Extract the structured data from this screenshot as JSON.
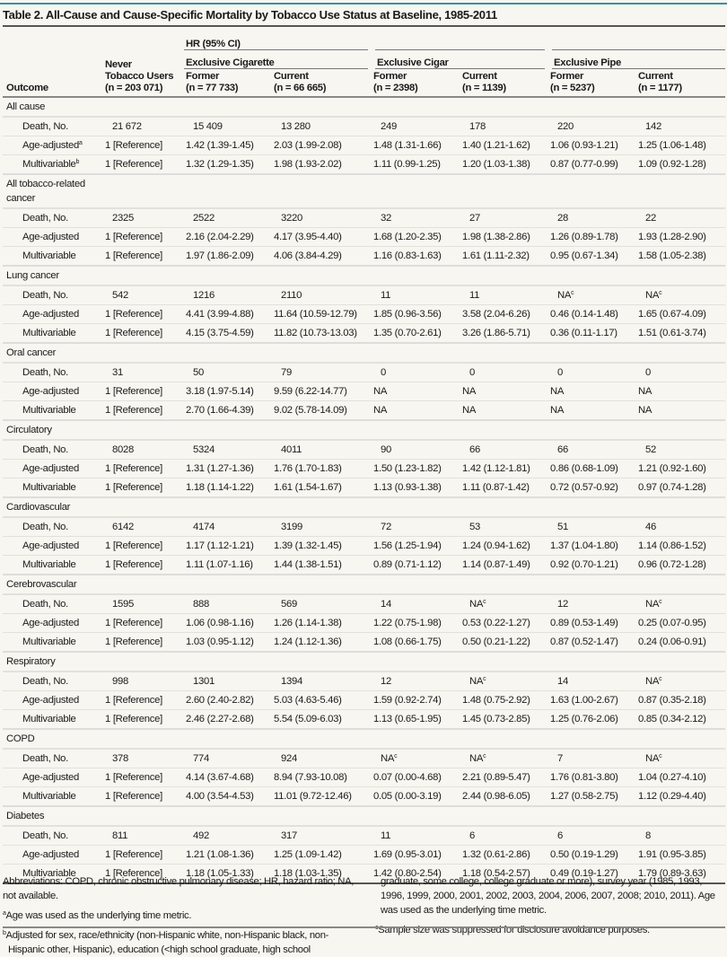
{
  "title": "Table 2. All-Cause and Cause-Specific Mortality by Tobacco Use Status at Baseline, 1985-2011",
  "header": {
    "outcome": "Outcome",
    "never_line1": "Never",
    "never_line2": "Tobacco Users",
    "never_n": "(n = 203 071)",
    "hr": "HR (95% CI)",
    "groups": [
      "Exclusive Cigarette",
      "Exclusive Cigar",
      "Exclusive Pipe"
    ],
    "columns": [
      {
        "status": "Former",
        "n": "(n = 77 733)"
      },
      {
        "status": "Current",
        "n": "(n = 66 665)"
      },
      {
        "status": "Former",
        "n": "(n = 2398)"
      },
      {
        "status": "Current",
        "n": "(n = 1139)"
      },
      {
        "status": "Former",
        "n": "(n = 5237)"
      },
      {
        "status": "Current",
        "n": "(n = 1177)"
      }
    ]
  },
  "sections": [
    {
      "name": "All cause",
      "rows": [
        {
          "label": "Death, No.",
          "values": [
            "21 672",
            "15 409",
            "13 280",
            "249",
            "178",
            "220",
            "142"
          ]
        },
        {
          "label": "Age-adjusted",
          "sup": "a",
          "values": [
            "1 [Reference]",
            "1.42 (1.39-1.45)",
            "2.03 (1.99-2.08)",
            "1.48 (1.31-1.66)",
            "1.40 (1.21-1.62)",
            "1.06 (0.93-1.21)",
            "1.25 (1.06-1.48)"
          ]
        },
        {
          "label": "Multivariable",
          "sup": "b",
          "values": [
            "1 [Reference]",
            "1.32 (1.29-1.35)",
            "1.98 (1.93-2.02)",
            "1.11 (0.99-1.25)",
            "1.20 (1.03-1.38)",
            "0.87 (0.77-0.99)",
            "1.09 (0.92-1.28)"
          ]
        }
      ]
    },
    {
      "name": "All tobacco-related",
      "name2": "cancer",
      "rows": [
        {
          "label": "Death, No.",
          "values": [
            "2325",
            "2522",
            "3220",
            "32",
            "27",
            "28",
            "22"
          ]
        },
        {
          "label": "Age-adjusted",
          "values": [
            "1 [Reference]",
            "2.16 (2.04-2.29)",
            "4.17 (3.95-4.40)",
            "1.68 (1.20-2.35)",
            "1.98 (1.38-2.86)",
            "1.26 (0.89-1.78)",
            "1.93 (1.28-2.90)"
          ]
        },
        {
          "label": "Multivariable",
          "values": [
            "1 [Reference]",
            "1.97 (1.86-2.09)",
            "4.06 (3.84-4.29)",
            "1.16 (0.83-1.63)",
            "1.61 (1.11-2.32)",
            "0.95 (0.67-1.34)",
            "1.58 (1.05-2.38)"
          ]
        }
      ]
    },
    {
      "name": "Lung cancer",
      "rows": [
        {
          "label": "Death, No.",
          "values": [
            "542",
            "1216",
            "2110",
            "11",
            "11",
            {
              "v": "NA",
              "fn": "c"
            },
            {
              "v": "NA",
              "fn": "c"
            }
          ]
        },
        {
          "label": "Age-adjusted",
          "values": [
            "1 [Reference]",
            "4.41 (3.99-4.88)",
            "11.64 (10.59-12.79)",
            "1.85 (0.96-3.56)",
            "3.58 (2.04-6.26)",
            "0.46 (0.14-1.48)",
            "1.65 (0.67-4.09)"
          ]
        },
        {
          "label": "Multivariable",
          "values": [
            "1 [Reference]",
            "4.15 (3.75-4.59)",
            "11.82 (10.73-13.03)",
            "1.35 (0.70-2.61)",
            "3.26 (1.86-5.71)",
            "0.36 (0.11-1.17)",
            "1.51 (0.61-3.74)"
          ]
        }
      ]
    },
    {
      "name": "Oral cancer",
      "rows": [
        {
          "label": "Death, No.",
          "values": [
            "31",
            "50",
            "79",
            "0",
            "0",
            "0",
            "0"
          ]
        },
        {
          "label": "Age-adjusted",
          "values": [
            "1 [Reference]",
            "3.18 (1.97-5.14)",
            "9.59 (6.22-14.77)",
            "NA",
            "NA",
            "NA",
            "NA"
          ]
        },
        {
          "label": "Multivariable",
          "values": [
            "1 [Reference]",
            "2.70 (1.66-4.39)",
            "9.02 (5.78-14.09)",
            "NA",
            "NA",
            "NA",
            "NA"
          ]
        }
      ]
    },
    {
      "name": "Circulatory",
      "rows": [
        {
          "label": "Death, No.",
          "values": [
            "8028",
            "5324",
            "4011",
            "90",
            "66",
            "66",
            "52"
          ]
        },
        {
          "label": "Age-adjusted",
          "values": [
            "1 [Reference]",
            "1.31 (1.27-1.36)",
            "1.76 (1.70-1.83)",
            "1.50 (1.23-1.82)",
            "1.42 (1.12-1.81)",
            "0.86 (0.68-1.09)",
            "1.21 (0.92-1.60)"
          ]
        },
        {
          "label": "Multivariable",
          "values": [
            "1 [Reference]",
            "1.18 (1.14-1.22)",
            "1.61 (1.54-1.67)",
            "1.13 (0.93-1.38)",
            "1.11 (0.87-1.42)",
            "0.72 (0.57-0.92)",
            "0.97 (0.74-1.28)"
          ]
        }
      ]
    },
    {
      "name": "Cardiovascular",
      "rows": [
        {
          "label": "Death, No.",
          "values": [
            "6142",
            "4174",
            "3199",
            "72",
            "53",
            "51",
            "46"
          ]
        },
        {
          "label": "Age-adjusted",
          "values": [
            "1 [Reference]",
            "1.17 (1.12-1.21)",
            "1.39 (1.32-1.45)",
            "1.56 (1.25-1.94)",
            "1.24 (0.94-1.62)",
            "1.37 (1.04-1.80)",
            "1.14 (0.86-1.52)"
          ]
        },
        {
          "label": "Multivariable",
          "values": [
            "1 [Reference]",
            "1.11 (1.07-1.16)",
            "1.44 (1.38-1.51)",
            "0.89 (0.71-1.12)",
            "1.14 (0.87-1.49)",
            "0.92 (0.70-1.21)",
            "0.96 (0.72-1.28)"
          ]
        }
      ]
    },
    {
      "name": "Cerebrovascular",
      "rows": [
        {
          "label": "Death, No.",
          "values": [
            "1595",
            "888",
            "569",
            "14",
            {
              "v": "NA",
              "fn": "c"
            },
            "12",
            {
              "v": "NA",
              "fn": "c"
            }
          ]
        },
        {
          "label": "Age-adjusted",
          "values": [
            "1 [Reference]",
            "1.06 (0.98-1.16)",
            "1.26 (1.14-1.38)",
            "1.22 (0.75-1.98)",
            "0.53 (0.22-1.27)",
            "0.89 (0.53-1.49)",
            "0.25 (0.07-0.95)"
          ]
        },
        {
          "label": "Multivariable",
          "values": [
            "1 [Reference]",
            "1.03 (0.95-1.12)",
            "1.24 (1.12-1.36)",
            "1.08 (0.66-1.75)",
            "0.50 (0.21-1.22)",
            "0.87 (0.52-1.47)",
            "0.24 (0.06-0.91)"
          ]
        }
      ]
    },
    {
      "name": "Respiratory",
      "rows": [
        {
          "label": "Death, No.",
          "values": [
            "998",
            "1301",
            "1394",
            "12",
            {
              "v": "NA",
              "fn": "c"
            },
            "14",
            {
              "v": "NA",
              "fn": "c"
            }
          ]
        },
        {
          "label": "Age-adjusted",
          "values": [
            "1 [Reference]",
            "2.60 (2.40-2.82)",
            "5.03 (4.63-5.46)",
            "1.59 (0.92-2.74)",
            "1.48 (0.75-2.92)",
            "1.63 (1.00-2.67)",
            "0.87 (0.35-2.18)"
          ]
        },
        {
          "label": "Multivariable",
          "values": [
            "1 [Reference]",
            "2.46 (2.27-2.68)",
            "5.54 (5.09-6.03)",
            "1.13 (0.65-1.95)",
            "1.45 (0.73-2.85)",
            "1.25 (0.76-2.06)",
            "0.85 (0.34-2.12)"
          ]
        }
      ]
    },
    {
      "name": "COPD",
      "rows": [
        {
          "label": "Death, No.",
          "values": [
            "378",
            "774",
            "924",
            {
              "v": "NA",
              "fn": "c"
            },
            {
              "v": "NA",
              "fn": "c"
            },
            "7",
            {
              "v": "NA",
              "fn": "c"
            }
          ]
        },
        {
          "label": "Age-adjusted",
          "values": [
            "1 [Reference]",
            "4.14 (3.67-4.68)",
            "8.94 (7.93-10.08)",
            "0.07 (0.00-4.68)",
            "2.21 (0.89-5.47)",
            "1.76 (0.81-3.80)",
            "1.04 (0.27-4.10)"
          ]
        },
        {
          "label": "Multivariable",
          "values": [
            "1 [Reference]",
            "4.00 (3.54-4.53)",
            "11.01 (9.72-12.46)",
            "0.05 (0.00-3.19)",
            "2.44 (0.98-6.05)",
            "1.27 (0.58-2.75)",
            "1.12 (0.29-4.40)"
          ]
        }
      ]
    },
    {
      "name": "Diabetes",
      "rows": [
        {
          "label": "Death, No.",
          "values": [
            "811",
            "492",
            "317",
            "11",
            "6",
            "6",
            "8"
          ]
        },
        {
          "label": "Age-adjusted",
          "values": [
            "1 [Reference]",
            "1.21 (1.08-1.36)",
            "1.25 (1.09-1.42)",
            "1.69 (0.95-3.01)",
            "1.32 (0.61-2.86)",
            "0.50 (0.19-1.29)",
            "1.91 (0.95-3.85)"
          ]
        },
        {
          "label": "Multivariable",
          "values": [
            "1 [Reference]",
            "1.18 (1.05-1.33)",
            "1.18 (1.03-1.35)",
            "1.42 (0.80-2.54)",
            "1.18 (0.54-2.57)",
            "0.49 (0.19-1.27)",
            "1.79 (0.89-3.63)"
          ]
        }
      ]
    }
  ],
  "footnotes": {
    "abbreviations": "Abbreviations: COPD, chronic obstructive pulmonary disease; HR, hazard ratio; NA, not available.",
    "a_mark": "a",
    "a": "Age was used as the underlying time metric.",
    "b_mark": "b",
    "b_part1": "Adjusted for sex, race/ethnicity (non-Hispanic white, non-Hispanic black, non-Hispanic other, Hispanic), education (<high school graduate, high school",
    "b_part2": "graduate, some college, college graduate or more), survey year (1985, 1993, 1996, 1999, 2000, 2001, 2002, 2003, 2004, 2006, 2007, 2008; 2010, 2011). Age was used as the underlying time metric.",
    "c_mark": "c",
    "c": "Sample size was suppressed for disclosure avoidance purposes."
  }
}
